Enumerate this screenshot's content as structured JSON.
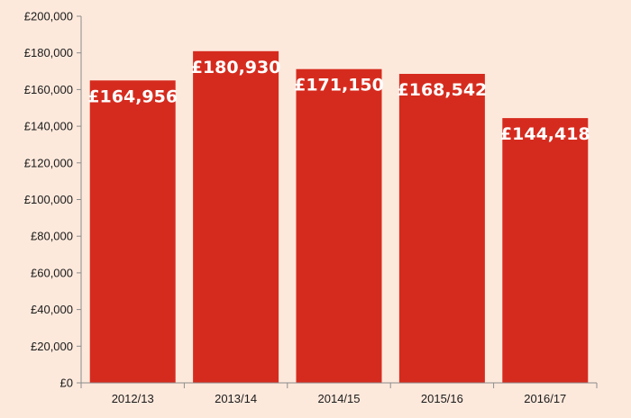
{
  "colors": {
    "background": "#fde9dc",
    "bar": "#d52b1e",
    "axis": "#8c8c8c",
    "label_text": "#1a1a1a",
    "data_label_text": "#ffffff"
  },
  "chart_data": {
    "type": "bar",
    "categories": [
      "2012/13",
      "2013/14",
      "2014/15",
      "2015/16",
      "2016/17"
    ],
    "values": [
      164956,
      180930,
      171150,
      168542,
      144418
    ],
    "data_labels": [
      "£164,956",
      "£180,930",
      "£171,150",
      "£168,542",
      "£144,418"
    ],
    "ylim": [
      0,
      200000
    ],
    "y_ticks": [
      0,
      20000,
      40000,
      60000,
      80000,
      100000,
      120000,
      140000,
      160000,
      180000,
      200000
    ],
    "y_tick_labels": [
      "£0",
      "£20,000",
      "£40,000",
      "£60,000",
      "£80,000",
      "£100,000",
      "£120,000",
      "£140,000",
      "£160,000",
      "£180,000",
      "£200,000"
    ],
    "title": "",
    "xlabel": "",
    "ylabel": "",
    "grid": false,
    "legend": "none"
  }
}
